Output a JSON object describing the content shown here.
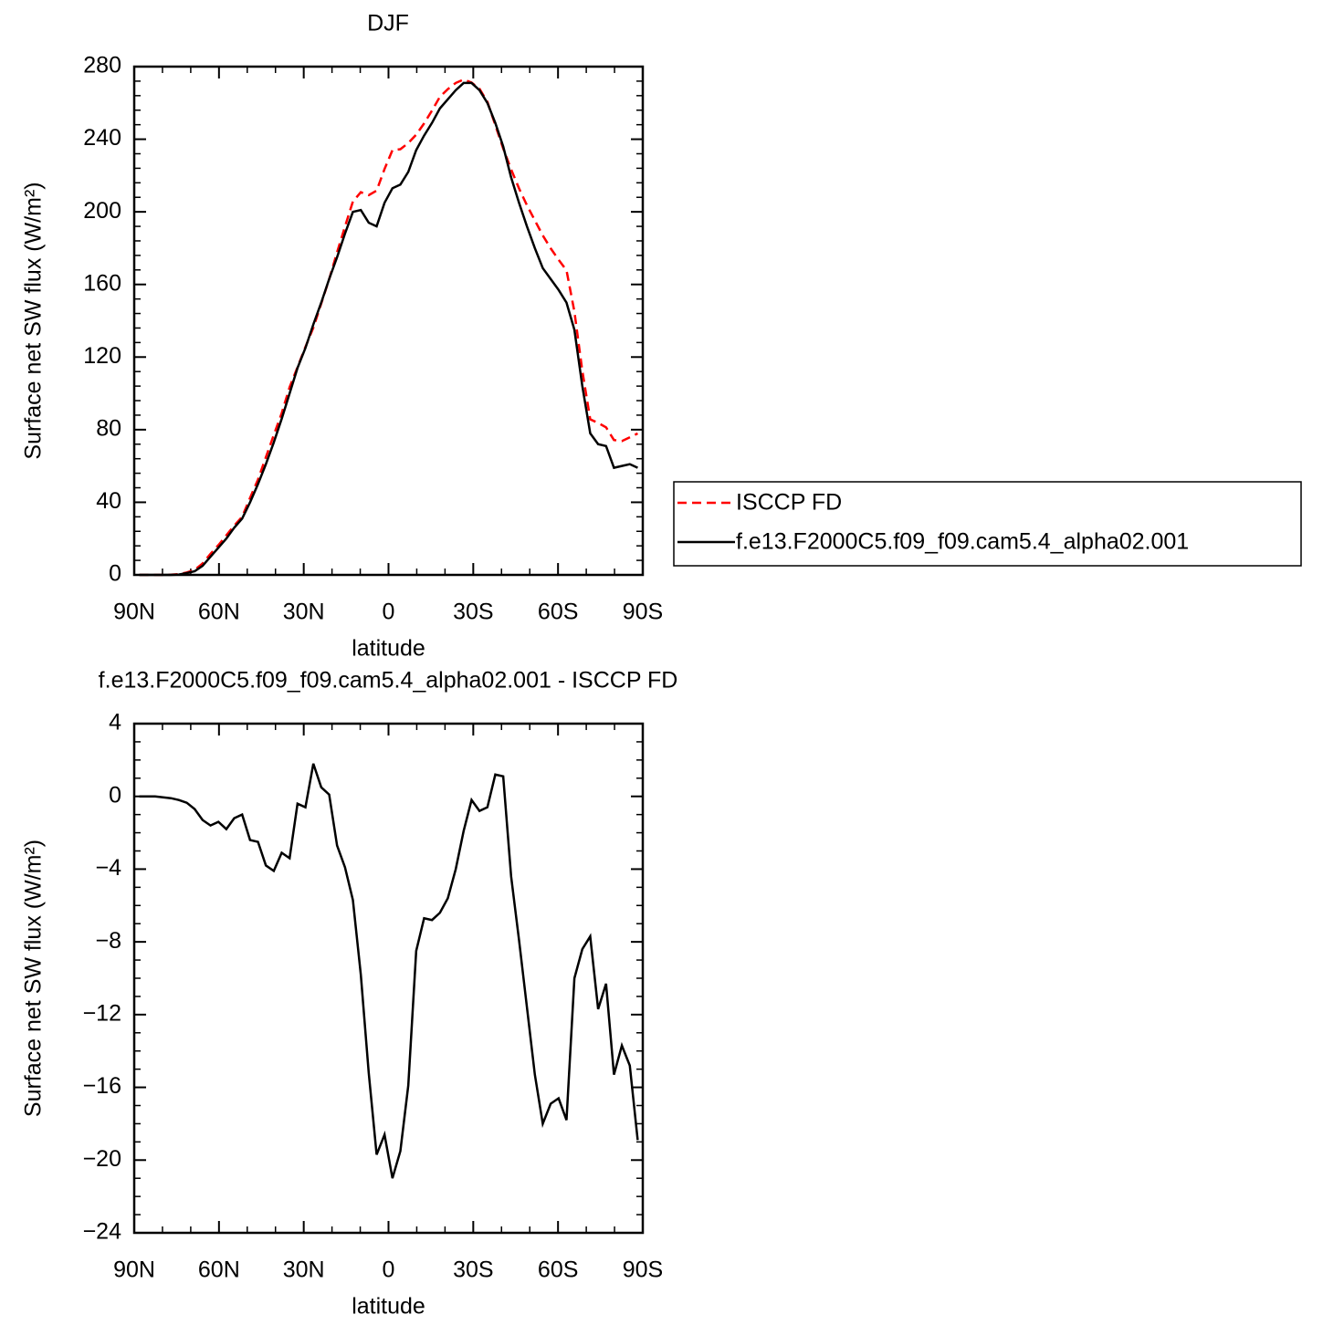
{
  "chart_data": [
    {
      "type": "line",
      "title": "DJF",
      "xlabel": "latitude",
      "ylabel": "Surface net SW flux (W/m²)",
      "x": [
        88.2,
        85.4,
        82.6,
        79.8,
        77,
        74.2,
        71.4,
        68.6,
        65.8,
        63,
        60.2,
        57.4,
        54.6,
        51.8,
        49,
        46.2,
        43.4,
        40.6,
        37.8,
        35,
        32.2,
        29.4,
        26.6,
        23.8,
        21,
        18.2,
        15.4,
        12.6,
        9.8,
        7,
        4.2,
        1.4,
        -1.4,
        -4.2,
        -7,
        -9.8,
        -12.6,
        -15.4,
        -18.2,
        -21,
        -23.8,
        -26.6,
        -29.4,
        -32.2,
        -35,
        -37.8,
        -40.6,
        -43.4,
        -46.2,
        -49,
        -51.8,
        -54.6,
        -57.4,
        -60.2,
        -63,
        -65.8,
        -68.6,
        -71.4,
        -74.2,
        -77,
        -79.8,
        -82.6,
        -85.4,
        -88.2
      ],
      "xlim": [
        90,
        -90
      ],
      "xticks": [
        {
          "value": 90,
          "label": "90N"
        },
        {
          "value": 60,
          "label": "60N"
        },
        {
          "value": 30,
          "label": "30N"
        },
        0,
        {
          "value": -30,
          "label": "30S"
        },
        {
          "value": -60,
          "label": "60S"
        },
        {
          "value": -90,
          "label": "90S"
        }
      ],
      "ylim": [
        0,
        280
      ],
      "yticks": [
        0,
        40,
        80,
        120,
        160,
        200,
        240,
        280
      ],
      "legend": "right",
      "series": [
        {
          "name": "ISCCP FD",
          "color": "#ff0000",
          "linestyle": "dashed",
          "values": [
            0,
            0,
            0,
            0,
            0.1,
            0.4,
            1.35,
            2.7,
            6.3,
            11.6,
            16.4,
            21.8,
            27.2,
            32,
            42.4,
            52.5,
            64.8,
            77.1,
            89.1,
            103.4,
            114.4,
            125.6,
            136.2,
            149.5,
            162.9,
            177.7,
            191.9,
            205.7,
            210.8,
            209.2,
            211.7,
            223.6,
            234,
            234.5,
            237.9,
            242.5,
            248.7,
            255.8,
            263.4,
            267.6,
            271,
            272.9,
            271.2,
            267.8,
            260.6,
            247.8,
            234.9,
            223.4,
            212.9,
            203.6,
            195.3,
            187,
            179.9,
            173.6,
            167.8,
            145,
            112.4,
            85.7,
            83.7,
            81.3,
            74.3,
            73.7,
            75.8,
            77.9
          ]
        },
        {
          "name": "f.e13.F2000C5.f09_f09.cam5.4_alpha02.001",
          "color": "#000000",
          "linestyle": "solid",
          "values": [
            0,
            0,
            0,
            0,
            0,
            0.2,
            1,
            2,
            5,
            10,
            15,
            20,
            26,
            31,
            40,
            50,
            61,
            73,
            86,
            100,
            114,
            125,
            138,
            150,
            163,
            175,
            188,
            200,
            201,
            194,
            192,
            205,
            213,
            215,
            222,
            234,
            242,
            249,
            257,
            262,
            267,
            271,
            271,
            267,
            260,
            249,
            236,
            219,
            205,
            192,
            180,
            169,
            163,
            157,
            150,
            135,
            104,
            78,
            72,
            71,
            59,
            60,
            61,
            59
          ]
        }
      ]
    },
    {
      "type": "line",
      "title": "f.e13.F2000C5.f09_f09.cam5.4_alpha02.001 - ISCCP FD",
      "xlabel": "latitude",
      "ylabel": "Surface net SW flux (W/m²)",
      "x": [
        88.2,
        85.4,
        82.6,
        79.8,
        77,
        74.2,
        71.4,
        68.6,
        65.8,
        63,
        60.2,
        57.4,
        54.6,
        51.8,
        49,
        46.2,
        43.4,
        40.6,
        37.8,
        35,
        32.2,
        29.4,
        26.6,
        23.8,
        21,
        18.2,
        15.4,
        12.6,
        9.8,
        7,
        4.2,
        1.4,
        -1.4,
        -4.2,
        -7,
        -9.8,
        -12.6,
        -15.4,
        -18.2,
        -21,
        -23.8,
        -26.6,
        -29.4,
        -32.2,
        -35,
        -37.8,
        -40.6,
        -43.4,
        -46.2,
        -49,
        -51.8,
        -54.6,
        -57.4,
        -60.2,
        -63,
        -65.8,
        -68.6,
        -71.4,
        -74.2,
        -77,
        -79.8,
        -82.6,
        -85.4,
        -88.2
      ],
      "xlim": [
        90,
        -90
      ],
      "xticks": [
        {
          "value": 90,
          "label": "90N"
        },
        {
          "value": 60,
          "label": "60N"
        },
        {
          "value": 30,
          "label": "30N"
        },
        0,
        {
          "value": -30,
          "label": "30S"
        },
        {
          "value": -60,
          "label": "60S"
        },
        {
          "value": -90,
          "label": "90S"
        }
      ],
      "ylim": [
        -24,
        4
      ],
      "yticks": [
        {
          "value": -24,
          "label": "−24"
        },
        {
          "value": -20,
          "label": "−20"
        },
        {
          "value": -16,
          "label": "−16"
        },
        {
          "value": -12,
          "label": "−12"
        },
        {
          "value": -8,
          "label": "−8"
        },
        {
          "value": -4,
          "label": "−4"
        },
        0,
        4
      ],
      "series": [
        {
          "color": "#000000",
          "linestyle": "solid",
          "values": [
            0,
            0,
            0,
            -0.05,
            -0.1,
            -0.2,
            -0.35,
            -0.7,
            -1.3,
            -1.6,
            -1.4,
            -1.8,
            -1.2,
            -1,
            -2.4,
            -2.5,
            -3.8,
            -4.1,
            -3.1,
            -3.4,
            -0.4,
            -0.6,
            1.8,
            0.5,
            0.1,
            -2.7,
            -3.9,
            -5.7,
            -9.8,
            -15.2,
            -19.7,
            -18.6,
            -21,
            -19.5,
            -15.9,
            -8.5,
            -6.7,
            -6.8,
            -6.4,
            -5.6,
            -4,
            -1.9,
            -0.2,
            -0.8,
            -0.6,
            1.2,
            1.1,
            -4.4,
            -7.9,
            -11.6,
            -15.3,
            -18,
            -16.9,
            -16.6,
            -17.8,
            -10,
            -8.4,
            -7.7,
            -11.7,
            -10.3,
            -15.3,
            -13.7,
            -14.8,
            -18.9
          ]
        }
      ]
    }
  ]
}
